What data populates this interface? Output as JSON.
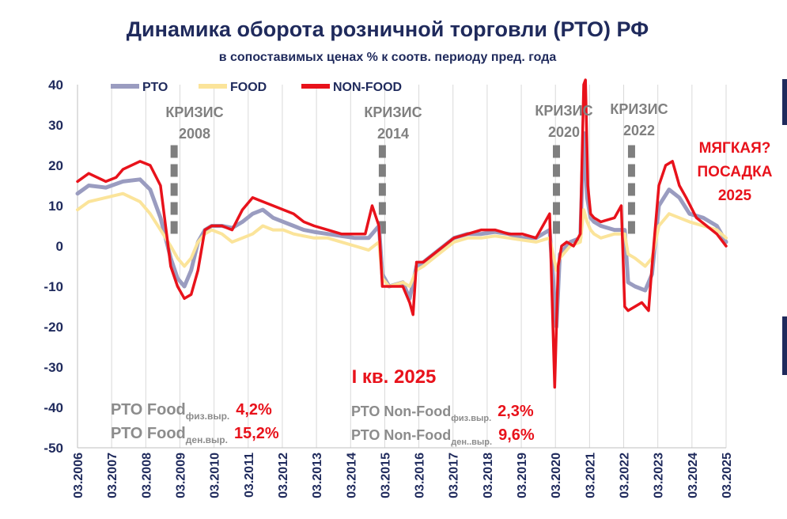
{
  "chart_data": {
    "type": "line",
    "title": "Динамика оборота розничной торговли (РТО) РФ",
    "subtitle": "в сопоставимых ценах % к соотв. периоду пред. года",
    "ylim": [
      -50,
      40
    ],
    "yticks": [
      "40",
      "30",
      "20",
      "10",
      "0",
      "-10",
      "-20",
      "-30",
      "-40",
      "-50"
    ],
    "ytick_values": [
      40,
      30,
      20,
      10,
      0,
      -10,
      -20,
      -30,
      -40,
      -50
    ],
    "xlim": [
      2006.17,
      2025.17
    ],
    "xticks": [
      "03.2006",
      "03.2007",
      "03.2008",
      "03.2009",
      "03.2010",
      "03.2011",
      "03.2012",
      "03.2013",
      "03.2014",
      "03.2015",
      "03.2016",
      "03.2017",
      "03.2018",
      "03.2019",
      "03.2020",
      "03.2021",
      "03.2022",
      "03.2023",
      "03.2024",
      "03.2025"
    ],
    "grid": "vertical",
    "legend": {
      "placement": "top-left",
      "entries": [
        "РТО",
        "FOOD",
        "NON-FOOD"
      ]
    },
    "colors": {
      "rto": "#9a9cc0",
      "food": "#fbe49a",
      "nonfood": "#e8121b",
      "crisis_marker": "#7f7f7f"
    },
    "series": [
      {
        "name": "РТО",
        "x": [
          2006.17,
          2006.5,
          2007.0,
          2007.5,
          2008.0,
          2008.3,
          2008.6,
          2008.9,
          2009.1,
          2009.3,
          2009.5,
          2009.7,
          2009.9,
          2010.1,
          2010.4,
          2010.7,
          2011.0,
          2011.3,
          2011.6,
          2011.9,
          2012.2,
          2012.5,
          2012.8,
          2013.1,
          2013.5,
          2013.9,
          2014.3,
          2014.7,
          2015.0,
          2015.1,
          2015.3,
          2015.7,
          2015.9,
          2016.1,
          2016.3,
          2016.6,
          2016.9,
          2017.2,
          2017.6,
          2018.0,
          2018.4,
          2018.8,
          2019.2,
          2019.6,
          2020.0,
          2020.2,
          2020.3,
          2020.4,
          2020.6,
          2020.9,
          2021.0,
          2021.1,
          2021.2,
          2021.3,
          2021.5,
          2021.9,
          2022.2,
          2022.3,
          2022.5,
          2022.8,
          2023.0,
          2023.2,
          2023.5,
          2023.8,
          2024.1,
          2024.5,
          2024.9,
          2025.17
        ],
        "y": [
          13,
          15,
          14.5,
          16,
          16.5,
          14,
          7,
          -3,
          -8,
          -10,
          -6,
          1,
          4,
          5,
          5,
          4.5,
          6,
          8,
          9,
          7,
          6,
          5,
          4,
          3.5,
          3,
          2.5,
          2,
          2,
          5,
          -7,
          -10,
          -9,
          -13,
          -5,
          -4,
          -2,
          0,
          2,
          3,
          3,
          3.5,
          3,
          2,
          2,
          4,
          -20,
          -2,
          -1,
          1,
          2,
          28,
          12,
          7,
          6,
          5,
          4,
          4,
          -9,
          -10,
          -11,
          -7,
          10,
          14,
          12,
          8,
          7,
          5,
          1
        ]
      },
      {
        "name": "FOOD",
        "x": [
          2006.17,
          2006.5,
          2007.0,
          2007.5,
          2008.0,
          2008.3,
          2008.6,
          2008.9,
          2009.1,
          2009.3,
          2009.5,
          2009.7,
          2009.9,
          2010.1,
          2010.4,
          2010.7,
          2011.0,
          2011.3,
          2011.6,
          2011.9,
          2012.2,
          2012.5,
          2012.8,
          2013.1,
          2013.5,
          2013.9,
          2014.3,
          2014.7,
          2015.0,
          2015.1,
          2015.3,
          2015.7,
          2015.9,
          2016.1,
          2016.3,
          2016.6,
          2016.9,
          2017.2,
          2017.6,
          2018.0,
          2018.4,
          2018.8,
          2019.2,
          2019.6,
          2020.0,
          2020.2,
          2020.3,
          2020.4,
          2020.6,
          2020.9,
          2021.0,
          2021.1,
          2021.2,
          2021.3,
          2021.5,
          2021.9,
          2022.2,
          2022.3,
          2022.5,
          2022.8,
          2023.0,
          2023.2,
          2023.5,
          2023.8,
          2024.1,
          2024.5,
          2024.9,
          2025.17
        ],
        "y": [
          9,
          11,
          12,
          13,
          11,
          8,
          4,
          0,
          -3,
          -5,
          -3,
          1,
          3,
          4,
          3,
          1,
          2,
          3,
          5,
          4,
          4,
          3,
          2.5,
          2,
          2,
          1,
          0,
          -1,
          1,
          -8,
          -10,
          -9,
          -10,
          -6,
          -5,
          -3,
          -1,
          1,
          2,
          2,
          2.5,
          2,
          1.5,
          1,
          2,
          -6,
          -3,
          -2,
          0,
          1,
          9,
          6,
          4,
          3,
          2,
          3,
          3,
          -2,
          -3,
          -5,
          -3,
          5,
          8,
          7,
          6,
          5,
          4,
          2
        ]
      },
      {
        "name": "NON-FOOD",
        "x": [
          2006.17,
          2006.5,
          2007.0,
          2007.3,
          2007.5,
          2008.0,
          2008.3,
          2008.6,
          2008.9,
          2009.1,
          2009.3,
          2009.5,
          2009.7,
          2009.9,
          2010.1,
          2010.4,
          2010.7,
          2011.0,
          2011.3,
          2011.6,
          2011.9,
          2012.2,
          2012.5,
          2012.8,
          2013.1,
          2013.5,
          2013.9,
          2014.3,
          2014.6,
          2014.8,
          2015.0,
          2015.1,
          2015.3,
          2015.7,
          2015.9,
          2016.0,
          2016.1,
          2016.3,
          2016.6,
          2016.9,
          2017.2,
          2017.6,
          2018.0,
          2018.4,
          2018.8,
          2019.2,
          2019.6,
          2020.0,
          2020.15,
          2020.25,
          2020.35,
          2020.5,
          2020.7,
          2020.9,
          2021.0,
          2021.05,
          2021.12,
          2021.2,
          2021.3,
          2021.5,
          2021.9,
          2022.1,
          2022.2,
          2022.3,
          2022.5,
          2022.7,
          2022.9,
          2023.0,
          2023.2,
          2023.4,
          2023.6,
          2023.8,
          2024.0,
          2024.3,
          2024.6,
          2024.9,
          2025.17
        ],
        "y": [
          16,
          18,
          16,
          17,
          19,
          21,
          20,
          15,
          -5,
          -10,
          -13,
          -12,
          -6,
          4,
          5,
          5,
          4,
          9,
          12,
          11,
          10,
          9,
          8,
          6,
          5,
          4,
          3,
          3,
          3,
          10,
          5,
          -10,
          -10,
          -10,
          -14,
          -17,
          -4,
          -4,
          -2,
          0,
          2,
          3,
          4,
          4,
          3,
          3,
          2,
          8,
          -35,
          -5,
          0,
          1,
          0,
          3,
          40,
          45,
          15,
          8,
          7,
          6,
          7,
          10,
          -15,
          -16,
          -15,
          -14,
          -16,
          -5,
          15,
          20,
          21,
          15,
          12,
          7,
          5,
          3,
          0
        ]
      }
    ],
    "crisis_labels": [
      {
        "line1": "КРИЗИС",
        "line2": "2008",
        "x": 2009.0
      },
      {
        "line1": "КРИЗИС",
        "line2": "2014",
        "x": 2015.1
      },
      {
        "line1": "КРИЗИС",
        "line2": "2020",
        "x": 2020.2
      },
      {
        "line1": "КРИЗИС",
        "line2": "2022",
        "x": 2022.4
      }
    ],
    "annotations": {
      "soft_landing": [
        "МЯГКАЯ?",
        "ПОСАДКА",
        "2025"
      ],
      "quarter": "I кв. 2025",
      "food_phys": {
        "label": "РТО Food",
        "sub": "физ.выр.",
        "value": "4,2%"
      },
      "food_money": {
        "label": "РТО Food",
        "sub": "ден.выр.",
        "value": "15,2%"
      },
      "nonfood_phys": {
        "label": "РТО Non-Food",
        "sub": "физ.выр.",
        "value": "2,3%"
      },
      "nonfood_money": {
        "label": "РТО Non-Food",
        "sub": "ден..выр.",
        "value": "9,6%"
      }
    }
  }
}
